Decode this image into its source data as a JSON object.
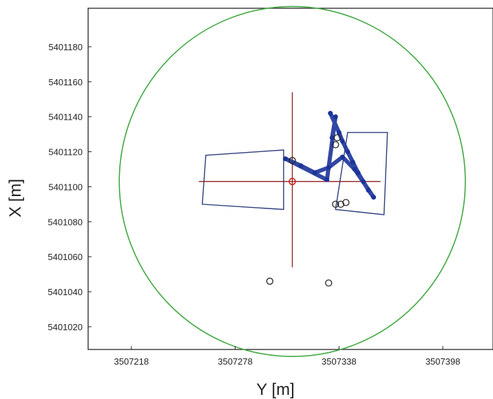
{
  "chart_data": {
    "type": "scatter",
    "xlabel": "Y [m]",
    "ylabel": "X [m]",
    "xlim": [
      3507193,
      3507427
    ],
    "ylim": [
      5401007,
      5401202
    ],
    "x_ticks": [
      3507218,
      3507278,
      3507338,
      3507398
    ],
    "y_ticks": [
      5401020,
      5401040,
      5401060,
      5401080,
      5401100,
      5401120,
      5401140,
      5401160,
      5401180
    ],
    "grid": false,
    "colors": {
      "circle": "#3fa83f",
      "crosshair": "#8b1a1a",
      "track": "#1c3399",
      "rect": "#2b3a7a",
      "marker": "#222222",
      "center": "#cc2222"
    },
    "circle": {
      "center": [
        3507311,
        5401103
      ],
      "radius": 100
    },
    "crosshair": {
      "center": [
        3507311,
        5401103
      ],
      "x_extent": [
        3507257,
        3507362
      ],
      "y_extent": [
        5401054,
        5401154
      ]
    },
    "rectangles": [
      {
        "name": "left",
        "corners": [
          [
            3507261,
            5401118
          ],
          [
            3507306,
            5401121
          ],
          [
            3507306,
            5401087
          ],
          [
            3507259,
            5401090
          ]
        ]
      },
      {
        "name": "right",
        "corners": [
          [
            3507343,
            5401131
          ],
          [
            3507366,
            5401131
          ],
          [
            3507364,
            5401084
          ],
          [
            3507336,
            5401087
          ]
        ]
      }
    ],
    "track": [
      [
        3507333,
        5401142
      ],
      [
        3507338,
        5401131
      ],
      [
        3507340,
        5401126
      ],
      [
        3507343,
        5401120
      ],
      [
        3507346,
        5401114
      ],
      [
        3507349,
        5401108
      ],
      [
        3507352,
        5401103
      ],
      [
        3507355,
        5401098
      ],
      [
        3507358,
        5401094
      ],
      [
        3507347,
        5401110
      ],
      [
        3507340,
        5401117
      ],
      [
        3507332,
        5401111
      ],
      [
        3507324,
        5401108
      ],
      [
        3507316,
        5401112
      ],
      [
        3507307,
        5401116
      ],
      [
        3507331,
        5401104
      ],
      [
        3507336,
        5401140
      ],
      [
        3507334,
        5401128
      ]
    ],
    "markers": [
      [
        3507311,
        5401115
      ],
      [
        3507337,
        5401128
      ],
      [
        3507336,
        5401124
      ],
      [
        3507336,
        5401090
      ],
      [
        3507339,
        5401090
      ],
      [
        3507342,
        5401091
      ],
      [
        3507298,
        5401046
      ],
      [
        3507332,
        5401045
      ]
    ],
    "center_marker": [
      3507311,
      5401103
    ]
  }
}
